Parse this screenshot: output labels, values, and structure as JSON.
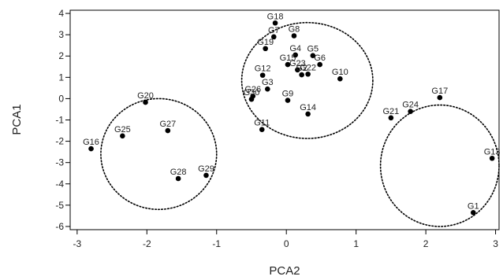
{
  "chart_data": {
    "type": "scatter",
    "title": "",
    "xlabel": "PCA2",
    "ylabel": "PCA1",
    "xlim": [
      -3.1,
      3.05
    ],
    "ylim": [
      -6.15,
      4.15
    ],
    "x_ticks": [
      -3,
      -2,
      -1,
      0,
      1,
      2,
      3
    ],
    "y_ticks": [
      4,
      3,
      2,
      1,
      0,
      -1,
      -2,
      -3,
      -4,
      -5,
      -6
    ],
    "grid": false,
    "legend": "none",
    "marker_color": "#000000",
    "points": [
      {
        "label": "G1",
        "x": 2.68,
        "y": -5.35
      },
      {
        "label": "G13",
        "x": 2.95,
        "y": -2.8
      },
      {
        "label": "G17",
        "x": 2.2,
        "y": 0.05
      },
      {
        "label": "G24",
        "x": 1.78,
        "y": -0.6
      },
      {
        "label": "G21",
        "x": 1.5,
        "y": -0.9
      },
      {
        "label": "G10",
        "x": 0.77,
        "y": 0.93
      },
      {
        "label": "G14",
        "x": 0.31,
        "y": -0.72
      },
      {
        "label": "G9",
        "x": 0.02,
        "y": -0.08
      },
      {
        "label": "G11",
        "x": -0.35,
        "y": -1.45
      },
      {
        "label": "G30",
        "x": -0.5,
        "y": -0.03
      },
      {
        "label": "G26",
        "x": -0.48,
        "y": 0.12
      },
      {
        "label": "G3",
        "x": -0.27,
        "y": 0.45
      },
      {
        "label": "G12",
        "x": -0.34,
        "y": 1.1
      },
      {
        "label": "G15",
        "x": 0.02,
        "y": 1.6
      },
      {
        "label": "G23",
        "x": 0.16,
        "y": 1.35
      },
      {
        "label": "G2",
        "x": 0.22,
        "y": 1.12
      },
      {
        "label": "G22",
        "x": 0.31,
        "y": 1.15
      },
      {
        "label": "G4",
        "x": 0.13,
        "y": 2.05
      },
      {
        "label": "G5",
        "x": 0.38,
        "y": 2.02
      },
      {
        "label": "G6",
        "x": 0.48,
        "y": 1.6
      },
      {
        "label": "G19",
        "x": -0.3,
        "y": 2.35
      },
      {
        "label": "G7",
        "x": -0.18,
        "y": 2.9
      },
      {
        "label": "G8",
        "x": 0.11,
        "y": 2.95
      },
      {
        "label": "G18",
        "x": -0.16,
        "y": 3.55
      },
      {
        "label": "G20",
        "x": -2.02,
        "y": -0.17
      },
      {
        "label": "G25",
        "x": -2.35,
        "y": -1.75
      },
      {
        "label": "G27",
        "x": -1.7,
        "y": -1.5
      },
      {
        "label": "G16",
        "x": -2.8,
        "y": -2.35
      },
      {
        "label": "G28",
        "x": -1.55,
        "y": -3.75
      },
      {
        "label": "G29",
        "x": -1.15,
        "y": -3.6
      }
    ],
    "clusters": [
      {
        "cx": -1.83,
        "cy": -2.6,
        "rx": 0.83,
        "ry": 2.6
      },
      {
        "cx": 0.3,
        "cy": 0.85,
        "rx": 0.94,
        "ry": 2.72
      },
      {
        "cx": 2.2,
        "cy": -3.15,
        "rx": 0.85,
        "ry": 2.85
      }
    ]
  }
}
